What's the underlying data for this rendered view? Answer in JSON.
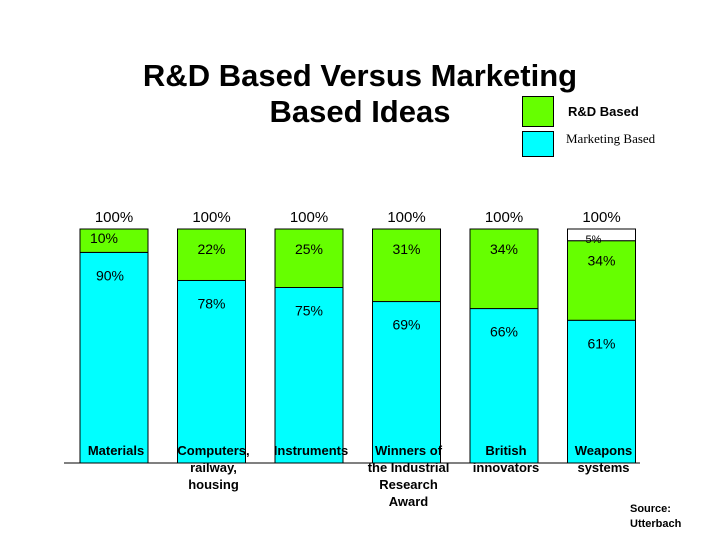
{
  "title": "R&D Based Versus Marketing Based Ideas",
  "legend": [
    {
      "label": "R&D Based",
      "color": "#66ff00"
    },
    {
      "label": "Marketing Based",
      "color": "#00ffff"
    }
  ],
  "source": "Source: Utterbach",
  "chart_data": {
    "type": "bar",
    "stacked": true,
    "categories": [
      "Materials",
      "Computers, railway, housing",
      "Instruments",
      "Winners of the Industrial Research Award",
      "British innovators",
      "Weapons systems"
    ],
    "category_lines": [
      [
        "Materials"
      ],
      [
        "Computers,",
        "railway,",
        "housing"
      ],
      [
        "Instruments"
      ],
      [
        "Winners of",
        "the Industrial",
        "Research",
        "Award"
      ],
      [
        "British",
        "innovators"
      ],
      [
        "Weapons",
        "systems"
      ]
    ],
    "total_labels": [
      "100%",
      "100%",
      "100%",
      "100%",
      "100%",
      "100%"
    ],
    "series": [
      {
        "name": "Marketing Based",
        "color": "#00ffff",
        "values": [
          90,
          78,
          75,
          69,
          66,
          61
        ],
        "labels": [
          "90%",
          "78%",
          "75%",
          "69%",
          "66%",
          "61%"
        ]
      },
      {
        "name": "R&D Based",
        "color": "#66ff00",
        "values": [
          10,
          22,
          25,
          31,
          34,
          34
        ],
        "labels": [
          "10%",
          "22%",
          "25%",
          "31%",
          "34%",
          "34%"
        ]
      },
      {
        "name": "",
        "color": "#ffffff",
        "values": [
          0,
          0,
          0,
          0,
          0,
          5
        ],
        "labels": [
          "",
          "",
          "",
          "",
          "",
          "5%"
        ]
      }
    ],
    "ylim": [
      0,
      100
    ]
  }
}
